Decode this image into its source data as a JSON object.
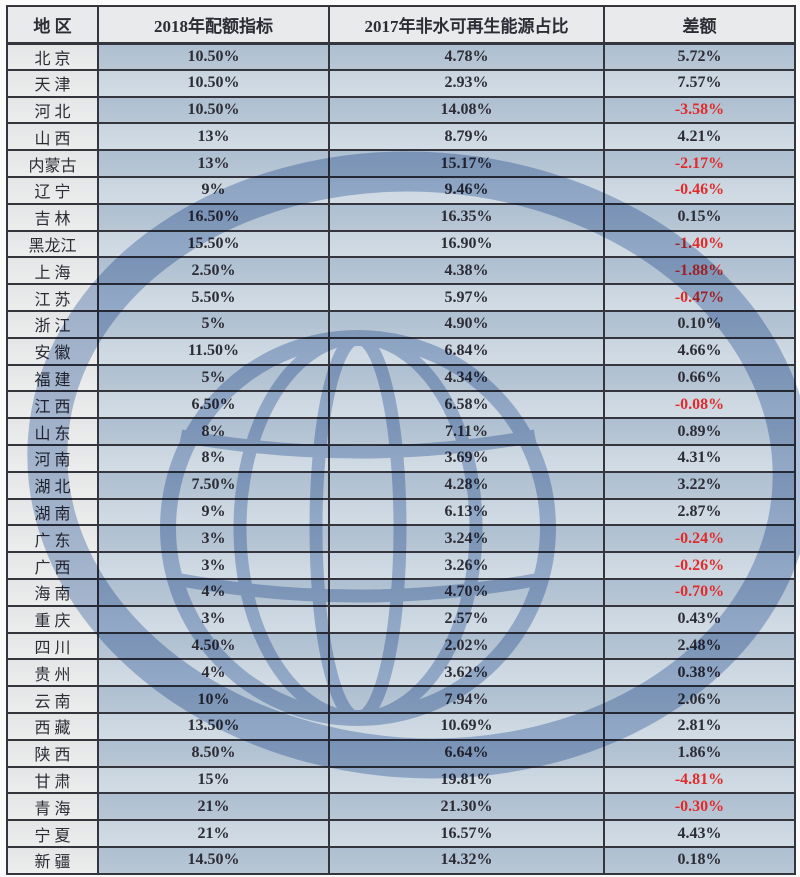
{
  "table": {
    "columns": [
      "地 区",
      "2018年配额指标",
      "2017年非水可再生能源占比",
      "差额"
    ],
    "rows": [
      [
        "北 京",
        "10.50%",
        "4.78%",
        "5.72%"
      ],
      [
        "天 津",
        "10.50%",
        "2.93%",
        "7.57%"
      ],
      [
        "河 北",
        "10.50%",
        "14.08%",
        "-3.58%"
      ],
      [
        "山 西",
        "13%",
        "8.79%",
        "4.21%"
      ],
      [
        "内蒙古",
        "13%",
        "15.17%",
        "-2.17%"
      ],
      [
        "辽 宁",
        "9%",
        "9.46%",
        "-0.46%"
      ],
      [
        "吉 林",
        "16.50%",
        "16.35%",
        "0.15%"
      ],
      [
        "黑龙江",
        "15.50%",
        "16.90%",
        "-1.40%"
      ],
      [
        "上 海",
        "2.50%",
        "4.38%",
        "-1.88%"
      ],
      [
        "江 苏",
        "5.50%",
        "5.97%",
        "-0.47%"
      ],
      [
        "浙 江",
        "5%",
        "4.90%",
        "0.10%"
      ],
      [
        "安 徽",
        "11.50%",
        "6.84%",
        "4.66%"
      ],
      [
        "福 建",
        "5%",
        "4.34%",
        "0.66%"
      ],
      [
        "江 西",
        "6.50%",
        "6.58%",
        "-0.08%"
      ],
      [
        "山 东",
        "8%",
        "7.11%",
        "0.89%"
      ],
      [
        "河 南",
        "8%",
        "3.69%",
        "4.31%"
      ],
      [
        "湖 北",
        "7.50%",
        "4.28%",
        "3.22%"
      ],
      [
        "湖 南",
        "9%",
        "6.13%",
        "2.87%"
      ],
      [
        "广 东",
        "3%",
        "3.24%",
        "-0.24%"
      ],
      [
        "广 西",
        "3%",
        "3.26%",
        "-0.26%"
      ],
      [
        "海 南",
        "4%",
        "4.70%",
        "-0.70%"
      ],
      [
        "重 庆",
        "3%",
        "2.57%",
        "0.43%"
      ],
      [
        "四 川",
        "4.50%",
        "2.02%",
        "2.48%"
      ],
      [
        "贵 州",
        "4%",
        "3.62%",
        "0.38%"
      ],
      [
        "云 南",
        "10%",
        "7.94%",
        "2.06%"
      ],
      [
        "西 藏",
        "13.50%",
        "10.69%",
        "2.81%"
      ],
      [
        "陕 西",
        "8.50%",
        "6.64%",
        "1.86%"
      ],
      [
        "甘 肃",
        "15%",
        "19.81%",
        "-4.81%"
      ],
      [
        "青 海",
        "21%",
        "21.30%",
        "-0.30%"
      ],
      [
        "宁 夏",
        "21%",
        "16.57%",
        "4.43%"
      ],
      [
        "新 疆",
        "14.50%",
        "14.32%",
        "0.18%"
      ]
    ]
  },
  "watermark": {
    "name": "globe-logo"
  },
  "colors": {
    "page_bg": "#fbfbfb",
    "header_bg": "#e9eaeb",
    "region_bg": "#e4e5e6",
    "row_odd": "#adbfd1",
    "row_odd2": "#b9c7d5",
    "row_even": "#c8d4df",
    "row_even2": "#d2dce5",
    "border": "#35353d",
    "text": "#2c2c35",
    "negative": "#e02b2b",
    "watermark": "#b2c4de"
  }
}
